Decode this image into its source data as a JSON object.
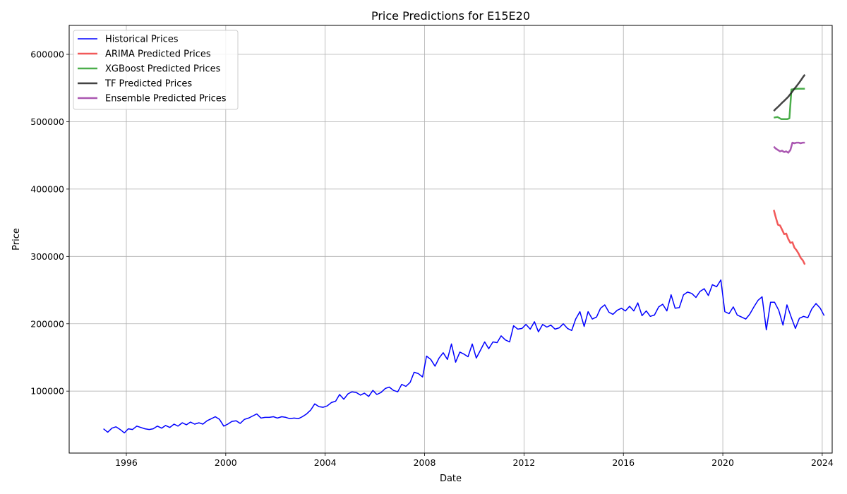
{
  "chart_data": {
    "type": "line",
    "title": "Price Predictions for E15E20",
    "xlabel": "Date",
    "ylabel": "Price",
    "xlim": [
      1993.7,
      2024.4
    ],
    "ylim": [
      8000,
      643000
    ],
    "x_ticks": [
      1996,
      2000,
      2004,
      2008,
      2012,
      2016,
      2020,
      2024
    ],
    "y_ticks": [
      100000,
      200000,
      300000,
      400000,
      500000,
      600000
    ],
    "grid": true,
    "legend_position": "top-left",
    "series": [
      {
        "name": "Historical Prices",
        "color": "#0000ff",
        "line_width": 1.5,
        "opacity": 1,
        "points": [
          [
            1995.08,
            44000
          ],
          [
            1995.25,
            39000
          ],
          [
            1995.42,
            45000
          ],
          [
            1995.58,
            47000
          ],
          [
            1995.75,
            43000
          ],
          [
            1995.92,
            38000
          ],
          [
            1996.08,
            44000
          ],
          [
            1996.25,
            43000
          ],
          [
            1996.42,
            48000
          ],
          [
            1996.58,
            46000
          ],
          [
            1996.75,
            44000
          ],
          [
            1996.92,
            43000
          ],
          [
            1997.08,
            44000
          ],
          [
            1997.25,
            48000
          ],
          [
            1997.42,
            45000
          ],
          [
            1997.58,
            49000
          ],
          [
            1997.75,
            46000
          ],
          [
            1997.92,
            51000
          ],
          [
            1998.08,
            48000
          ],
          [
            1998.25,
            53000
          ],
          [
            1998.42,
            50000
          ],
          [
            1998.58,
            54000
          ],
          [
            1998.75,
            51000
          ],
          [
            1998.92,
            53000
          ],
          [
            1999.08,
            51000
          ],
          [
            1999.25,
            56000
          ],
          [
            1999.42,
            59000
          ],
          [
            1999.58,
            62000
          ],
          [
            1999.75,
            58000
          ],
          [
            1999.92,
            48000
          ],
          [
            2000.08,
            51000
          ],
          [
            2000.25,
            55000
          ],
          [
            2000.42,
            56000
          ],
          [
            2000.58,
            52000
          ],
          [
            2000.75,
            58000
          ],
          [
            2000.92,
            60000
          ],
          [
            2001.08,
            63000
          ],
          [
            2001.25,
            66000
          ],
          [
            2001.42,
            60000
          ],
          [
            2001.58,
            61000
          ],
          [
            2001.75,
            61000
          ],
          [
            2001.92,
            62000
          ],
          [
            2002.08,
            60000
          ],
          [
            2002.25,
            62000
          ],
          [
            2002.42,
            61000
          ],
          [
            2002.58,
            59000
          ],
          [
            2002.75,
            60000
          ],
          [
            2002.92,
            59000
          ],
          [
            2003.08,
            62000
          ],
          [
            2003.25,
            66000
          ],
          [
            2003.42,
            72000
          ],
          [
            2003.58,
            81000
          ],
          [
            2003.75,
            77000
          ],
          [
            2003.92,
            76000
          ],
          [
            2004.08,
            78000
          ],
          [
            2004.25,
            83000
          ],
          [
            2004.42,
            85000
          ],
          [
            2004.58,
            95000
          ],
          [
            2004.75,
            88000
          ],
          [
            2004.92,
            96000
          ],
          [
            2005.08,
            99000
          ],
          [
            2005.25,
            98000
          ],
          [
            2005.42,
            94000
          ],
          [
            2005.58,
            97000
          ],
          [
            2005.75,
            92000
          ],
          [
            2005.92,
            101000
          ],
          [
            2006.08,
            95000
          ],
          [
            2006.25,
            98000
          ],
          [
            2006.42,
            104000
          ],
          [
            2006.58,
            106000
          ],
          [
            2006.75,
            101000
          ],
          [
            2006.92,
            99000
          ],
          [
            2007.08,
            110000
          ],
          [
            2007.25,
            107000
          ],
          [
            2007.42,
            113000
          ],
          [
            2007.58,
            128000
          ],
          [
            2007.75,
            126000
          ],
          [
            2007.92,
            121000
          ],
          [
            2008.08,
            152000
          ],
          [
            2008.25,
            147000
          ],
          [
            2008.42,
            137000
          ],
          [
            2008.58,
            149000
          ],
          [
            2008.75,
            157000
          ],
          [
            2008.92,
            147000
          ],
          [
            2009.08,
            170000
          ],
          [
            2009.25,
            143000
          ],
          [
            2009.42,
            158000
          ],
          [
            2009.58,
            155000
          ],
          [
            2009.75,
            151000
          ],
          [
            2009.92,
            170000
          ],
          [
            2010.08,
            149000
          ],
          [
            2010.25,
            161000
          ],
          [
            2010.42,
            173000
          ],
          [
            2010.58,
            163000
          ],
          [
            2010.75,
            173000
          ],
          [
            2010.92,
            172000
          ],
          [
            2011.08,
            182000
          ],
          [
            2011.25,
            176000
          ],
          [
            2011.42,
            173000
          ],
          [
            2011.58,
            197000
          ],
          [
            2011.75,
            192000
          ],
          [
            2011.92,
            193000
          ],
          [
            2012.08,
            199000
          ],
          [
            2012.25,
            192000
          ],
          [
            2012.42,
            203000
          ],
          [
            2012.58,
            188000
          ],
          [
            2012.75,
            199000
          ],
          [
            2012.92,
            195000
          ],
          [
            2013.08,
            198000
          ],
          [
            2013.25,
            192000
          ],
          [
            2013.42,
            194000
          ],
          [
            2013.58,
            200000
          ],
          [
            2013.75,
            193000
          ],
          [
            2013.92,
            190000
          ],
          [
            2014.08,
            207000
          ],
          [
            2014.25,
            218000
          ],
          [
            2014.42,
            196000
          ],
          [
            2014.58,
            218000
          ],
          [
            2014.75,
            207000
          ],
          [
            2014.92,
            210000
          ],
          [
            2015.08,
            223000
          ],
          [
            2015.25,
            228000
          ],
          [
            2015.42,
            217000
          ],
          [
            2015.58,
            214000
          ],
          [
            2015.75,
            220000
          ],
          [
            2015.92,
            223000
          ],
          [
            2016.08,
            219000
          ],
          [
            2016.25,
            226000
          ],
          [
            2016.42,
            219000
          ],
          [
            2016.58,
            231000
          ],
          [
            2016.75,
            212000
          ],
          [
            2016.92,
            219000
          ],
          [
            2017.08,
            211000
          ],
          [
            2017.25,
            213000
          ],
          [
            2017.42,
            225000
          ],
          [
            2017.58,
            229000
          ],
          [
            2017.75,
            219000
          ],
          [
            2017.92,
            243000
          ],
          [
            2018.08,
            223000
          ],
          [
            2018.25,
            224000
          ],
          [
            2018.42,
            243000
          ],
          [
            2018.58,
            247000
          ],
          [
            2018.75,
            245000
          ],
          [
            2018.92,
            239000
          ],
          [
            2019.08,
            248000
          ],
          [
            2019.25,
            252000
          ],
          [
            2019.42,
            242000
          ],
          [
            2019.58,
            258000
          ],
          [
            2019.75,
            255000
          ],
          [
            2019.92,
            265000
          ],
          [
            2020.08,
            218000
          ],
          [
            2020.25,
            215000
          ],
          [
            2020.42,
            225000
          ],
          [
            2020.58,
            213000
          ],
          [
            2020.75,
            210000
          ],
          [
            2020.92,
            207000
          ],
          [
            2021.08,
            214000
          ],
          [
            2021.25,
            225000
          ],
          [
            2021.42,
            235000
          ],
          [
            2021.58,
            240000
          ],
          [
            2021.75,
            191000
          ],
          [
            2021.92,
            232000
          ],
          [
            2022.08,
            232000
          ],
          [
            2022.25,
            220000
          ],
          [
            2022.42,
            198000
          ],
          [
            2022.58,
            228000
          ],
          [
            2022.75,
            210000
          ],
          [
            2022.92,
            193000
          ],
          [
            2023.08,
            208000
          ],
          [
            2023.25,
            211000
          ],
          [
            2023.42,
            209000
          ],
          [
            2023.58,
            222000
          ],
          [
            2023.75,
            230000
          ],
          [
            2023.92,
            223000
          ],
          [
            2024.08,
            212000
          ]
        ]
      },
      {
        "name": "ARIMA Predicted Prices",
        "color": "#f03c3c",
        "line_width": 2.5,
        "opacity": 0.85,
        "points": [
          [
            2022.05,
            369000
          ],
          [
            2022.13,
            358000
          ],
          [
            2022.22,
            347000
          ],
          [
            2022.3,
            346000
          ],
          [
            2022.38,
            340000
          ],
          [
            2022.47,
            333000
          ],
          [
            2022.55,
            334000
          ],
          [
            2022.63,
            326000
          ],
          [
            2022.72,
            320000
          ],
          [
            2022.8,
            321000
          ],
          [
            2022.88,
            313000
          ],
          [
            2022.97,
            309000
          ],
          [
            2023.05,
            304000
          ],
          [
            2023.13,
            298000
          ],
          [
            2023.22,
            294000
          ],
          [
            2023.3,
            288000
          ]
        ]
      },
      {
        "name": "XGBoost Predicted Prices",
        "color": "#2ca02c",
        "line_width": 2.5,
        "opacity": 0.85,
        "points": [
          [
            2022.05,
            506000
          ],
          [
            2022.2,
            507000
          ],
          [
            2022.35,
            504000
          ],
          [
            2022.6,
            504000
          ],
          [
            2022.68,
            505000
          ],
          [
            2022.76,
            548000
          ],
          [
            2023.0,
            549000
          ],
          [
            2023.3,
            549000
          ]
        ]
      },
      {
        "name": "TF Predicted Prices",
        "color": "#222222",
        "line_width": 2.5,
        "opacity": 0.85,
        "points": [
          [
            2022.05,
            516000
          ],
          [
            2022.13,
            519000
          ],
          [
            2022.22,
            522000
          ],
          [
            2022.3,
            525000
          ],
          [
            2022.38,
            528000
          ],
          [
            2022.47,
            531000
          ],
          [
            2022.55,
            534000
          ],
          [
            2022.63,
            537000
          ],
          [
            2022.72,
            541000
          ],
          [
            2022.8,
            545000
          ],
          [
            2022.88,
            549000
          ],
          [
            2022.97,
            553000
          ],
          [
            2023.05,
            557000
          ],
          [
            2023.13,
            561000
          ],
          [
            2023.22,
            566000
          ],
          [
            2023.3,
            570000
          ]
        ]
      },
      {
        "name": "Ensemble Predicted Prices",
        "color": "#9b3aa3",
        "line_width": 2.5,
        "opacity": 0.85,
        "points": [
          [
            2022.05,
            463000
          ],
          [
            2022.13,
            460000
          ],
          [
            2022.22,
            458000
          ],
          [
            2022.3,
            456000
          ],
          [
            2022.38,
            457000
          ],
          [
            2022.47,
            455000
          ],
          [
            2022.55,
            456000
          ],
          [
            2022.63,
            454000
          ],
          [
            2022.72,
            458000
          ],
          [
            2022.8,
            469000
          ],
          [
            2022.88,
            468000
          ],
          [
            2022.97,
            469000
          ],
          [
            2023.05,
            469000
          ],
          [
            2023.13,
            468000
          ],
          [
            2023.22,
            469000
          ],
          [
            2023.3,
            469000
          ]
        ]
      }
    ]
  }
}
